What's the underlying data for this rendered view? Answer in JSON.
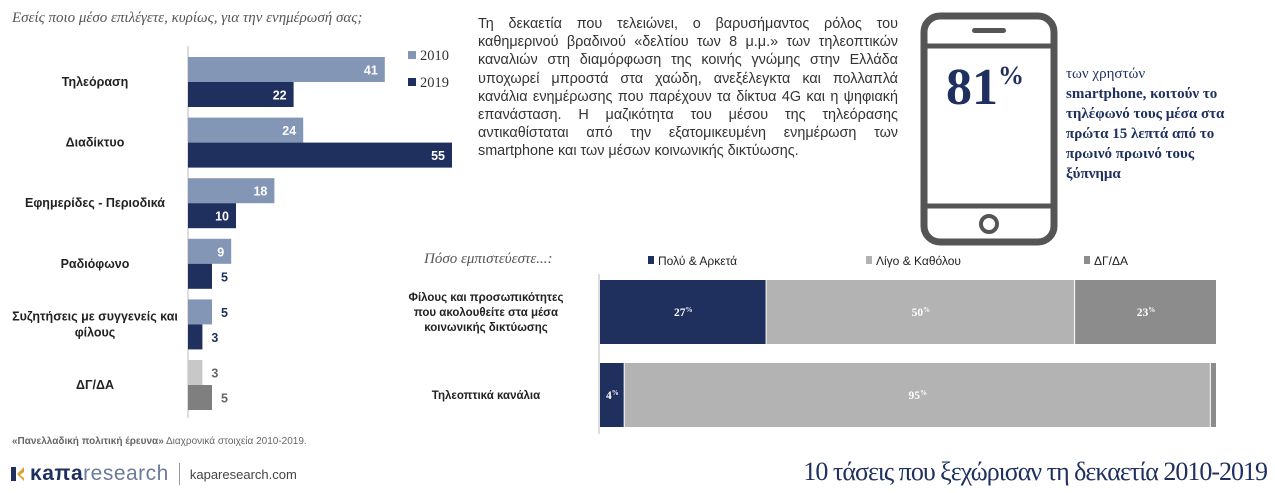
{
  "left_question": "Εσείς ποιο μέσο επιλέγετε, κυρίως, για την ενημέρωσή σας;",
  "chart_data": [
    {
      "type": "bar",
      "orientation": "horizontal",
      "categories": [
        "Τηλεόραση",
        "Διαδίκτυο",
        "Εφημερίδες - Περιοδικά",
        "Ραδιόφωνο",
        "Συζητήσεις με συγγενείς και φίλους",
        "ΔΓ/ΔΑ"
      ],
      "series": [
        {
          "name": "2010",
          "values": [
            41,
            24,
            18,
            9,
            5,
            3
          ],
          "color": "#8496b6"
        },
        {
          "name": "2019",
          "values": [
            22,
            55,
            10,
            5,
            3,
            5
          ],
          "color": "#1f2f5e"
        }
      ],
      "colors_note": "ΔΓ/ΔΑ bars drawn in grey",
      "na_colors": {
        "2010": "#c8c8c8",
        "2019": "#7f7f7f"
      },
      "legend": "right",
      "xlim": [
        0,
        55
      ]
    },
    {
      "type": "bar",
      "orientation": "horizontal",
      "stacked": true,
      "title": "Πόσο εμπιστεύεστε...:",
      "categories": [
        "Φίλους και προσωπικότητες που ακολουθείτε στα μέσα κοινωνικής δικτύωσης",
        "Τηλεοπτικά κανάλια"
      ],
      "series": [
        {
          "name": "Πολύ & Αρκετά",
          "values": [
            27,
            4
          ],
          "color": "#1f2f5e"
        },
        {
          "name": "Λίγο & Καθόλου",
          "values": [
            50,
            95
          ],
          "color": "#b3b3b3"
        },
        {
          "name": "ΔΓ/ΔΑ",
          "values": [
            23,
            1
          ],
          "color": "#8c8c8c"
        }
      ],
      "legend": "top",
      "value_suffix": "%"
    }
  ],
  "footnote": {
    "bold": "«Πανελλαδική πολιτική έρευνα»",
    "rest": " Διαχρονικά στοιχεία 2010-2019."
  },
  "logo": {
    "kapa": "κaπa",
    "research": "research",
    "site": "kaparesearch.com"
  },
  "paragraph": "Τη δεκαετία που τελειώνει, ο βαρυσήμαντος ρόλος του καθημερινού βραδινού «δελτίου των 8 μ.μ.» των τηλεοπτικών καναλιών στη διαμόρφωση της κοινής γνώμης στην Ελλάδα υποχωρεί μπροστά στα χαώδη, ανεξέλεγκτα και πολλαπλά κανάλια ενημέρωσης που παρέχουν τα δίκτυα 4G και η ψηφιακή επανάσταση. Η μαζικότητα του μέσου της τηλεόρασης αντικαθίσταται από την εξατομικευμένη ενημέρωση των smartphone και των μέσων κοινωνικής δικτύωσης.",
  "stat": {
    "value": "81",
    "unit": "%",
    "line1": "των χρηστών",
    "rest": "smartphone, κοιτούν το τηλέφωνό τους μέσα στα πρώτα 15 λεπτά από το πρωινό πρωινό τους ξύπνημα"
  },
  "title": "10 τάσεις που ξεχώρισαν τη δεκαετία 2010-2019"
}
